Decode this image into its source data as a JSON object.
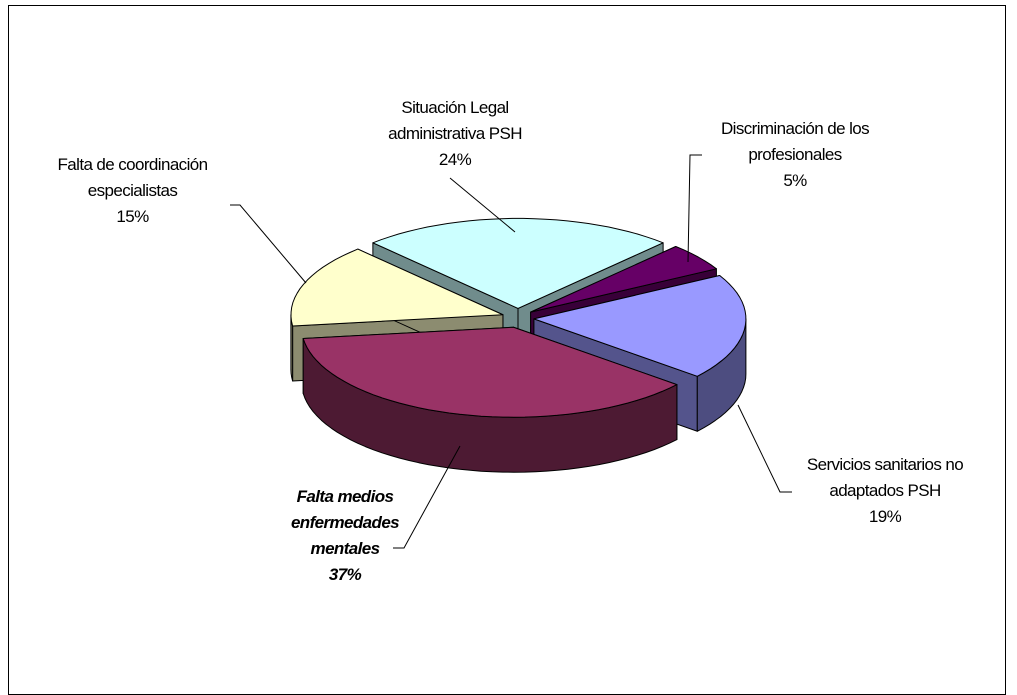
{
  "chart_data": {
    "type": "pie3d",
    "categories": [
      "Situación Legal administrativa PSH",
      "Discriminación de los profesionales",
      "Servicios sanitarios no adaptados PSH",
      "Falta medios enfermedades mentales",
      "Falta de coordinación especialistas"
    ],
    "values": [
      24,
      5,
      19,
      37,
      15
    ],
    "value_labels": [
      "24%",
      "5%",
      "19%",
      "37%",
      "15%"
    ],
    "colors": [
      "#ccffff",
      "#660066",
      "#9999ff",
      "#993366",
      "#ffffcc"
    ]
  }
}
